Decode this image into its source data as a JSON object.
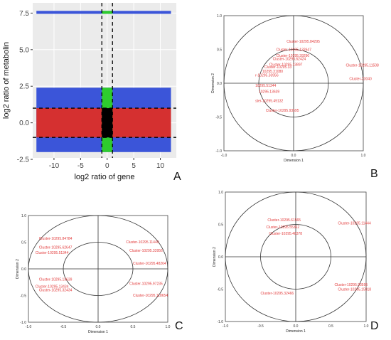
{
  "panels": {
    "A": {
      "letter": "A"
    },
    "B": {
      "letter": "B"
    },
    "C": {
      "letter": "C"
    },
    "D": {
      "letter": "D"
    }
  },
  "chart_data": [
    {
      "id": "A",
      "type": "scatter",
      "xlabel": "log2 ratio of gene",
      "ylabel": "log2 ratio of metabolin",
      "xlim": [
        -14,
        13
      ],
      "ylim": [
        -2.4,
        8.2
      ],
      "xticks": [
        -10,
        -5,
        0,
        5,
        10
      ],
      "yticks": [
        -2.5,
        0.0,
        2.5,
        5.0,
        7.5
      ],
      "ytick_labels": [
        "-2.5",
        "0.0",
        "2.5",
        "5.0",
        "7.5"
      ],
      "grid": true,
      "background": "#ebebeb",
      "threshold_lines": {
        "x": [
          -1,
          1
        ],
        "y": [
          -1,
          1
        ]
      },
      "colors": {
        "outside": "#3b55d9",
        "y_within": "#d53030",
        "x_within": "#2ecc2e",
        "both_within": "#000000"
      },
      "regions": [
        {
          "name": "",
          "color": "#3b55d9",
          "x": [
            -13.3,
            12.0
          ],
          "y": [
            -2.0,
            2.4
          ]
        },
        {
          "name": "",
          "color": "#3b55d9",
          "x": [
            -13.3,
            12.0
          ],
          "y": [
            7.45,
            7.65
          ]
        },
        {
          "name": "",
          "color": "#d53030",
          "x": [
            -13.3,
            12.0
          ],
          "y": [
            -1.0,
            1.0
          ]
        },
        {
          "name": "",
          "color": "#2ecc2e",
          "x": [
            -1.0,
            1.0
          ],
          "y": [
            -2.0,
            2.4
          ]
        },
        {
          "name": "",
          "color": "#2ecc2e",
          "x": [
            -1.0,
            1.0
          ],
          "y": [
            7.45,
            7.65
          ]
        },
        {
          "name": "",
          "color": "#000000",
          "x": [
            -1.0,
            1.0
          ],
          "y": [
            -1.0,
            1.0
          ]
        }
      ]
    },
    {
      "id": "B",
      "type": "scatter",
      "xlabel": "Dimension 1",
      "ylabel": "Dimension 2",
      "xlim": [
        -1,
        1
      ],
      "ylim": [
        -1,
        1
      ],
      "xticks": [
        -1.0,
        0.0,
        1.0
      ],
      "yticks": [
        -1.0,
        -0.5,
        0.0,
        0.5,
        1.0
      ],
      "circles": [
        1.0,
        0.5
      ],
      "label_color": "#e23c3c",
      "labels": [
        {
          "text": "Cluster-10295.84295",
          "x": -0.1,
          "y": 0.6
        },
        {
          "text": "Cluster-10295.132647",
          "x": -0.25,
          "y": 0.48
        },
        {
          "text": "Cluster-10295.39290",
          "x": -0.25,
          "y": 0.39
        },
        {
          "text": "Cluster-10295.62424",
          "x": -0.3,
          "y": 0.34
        },
        {
          "text": "Cluster-10295.13897",
          "x": -0.35,
          "y": 0.26
        },
        {
          "text": "Cluster-10295.33",
          "x": -0.42,
          "y": 0.22
        },
        {
          "text": "10295.31080",
          "x": -0.45,
          "y": 0.16
        },
        {
          "text": "r-10295.33956",
          "x": -0.55,
          "y": 0.1
        },
        {
          "text": "10295.51344",
          "x": -0.55,
          "y": -0.05
        },
        {
          "text": "10295.13639",
          "x": -0.5,
          "y": -0.14
        },
        {
          "text": "ster-10295.49132",
          "x": -0.55,
          "y": -0.28
        },
        {
          "text": "Cluster-10295.93595",
          "x": -0.4,
          "y": -0.42
        },
        {
          "text": "Cluster-10295.11508",
          "x": 0.75,
          "y": 0.25
        },
        {
          "text": "Cluster-23040",
          "x": 0.8,
          "y": 0.05
        }
      ]
    },
    {
      "id": "C",
      "type": "scatter",
      "xlabel": "Dimension 1",
      "ylabel": "Dimension 2",
      "xlim": [
        -1,
        1
      ],
      "ylim": [
        -1,
        1
      ],
      "xticks": [
        -1.0,
        -0.5,
        0.0,
        0.5,
        1.0
      ],
      "yticks": [
        -1.0,
        -0.5,
        0.0,
        0.5,
        1.0
      ],
      "circles": [
        1.0,
        0.5
      ],
      "label_color": "#e23c3c",
      "labels": [
        {
          "text": "Cluster-10295.84784",
          "x": -0.85,
          "y": 0.55
        },
        {
          "text": "Cluster-10295.62647",
          "x": -0.85,
          "y": 0.38
        },
        {
          "text": "Cluster-10295.51344",
          "x": -0.9,
          "y": 0.28
        },
        {
          "text": "Cluster-10295.11440",
          "x": 0.4,
          "y": 0.48
        },
        {
          "text": "Cluster-10295.33956",
          "x": 0.45,
          "y": 0.32
        },
        {
          "text": "Cluster-10295.48264",
          "x": 0.5,
          "y": 0.08
        },
        {
          "text": "Cluster-10295.13639",
          "x": -0.85,
          "y": -0.22
        },
        {
          "text": "Cluster-10295.13434",
          "x": -0.9,
          "y": -0.35
        },
        {
          "text": "Cluster-10295.32434",
          "x": -0.85,
          "y": -0.42
        },
        {
          "text": "Cluster-10295.97235",
          "x": 0.45,
          "y": -0.3
        },
        {
          "text": "Cluster-10295.118654",
          "x": 0.5,
          "y": -0.52
        }
      ]
    },
    {
      "id": "D",
      "type": "scatter",
      "xlabel": "Dimension 1",
      "ylabel": "Dimension 2",
      "xlim": [
        -1,
        1
      ],
      "ylim": [
        -1,
        1
      ],
      "xticks": [
        -1.0,
        -0.5,
        0.0,
        0.5,
        1.0
      ],
      "yticks": [
        -1.0,
        -0.5,
        0.0,
        0.5,
        1.0
      ],
      "circles": [
        1.0,
        0.5
      ],
      "label_color": "#e23c3c",
      "labels": [
        {
          "text": "Cluster-10295.61565",
          "x": -0.4,
          "y": 0.55
        },
        {
          "text": "Cluster-10295.55362",
          "x": -0.42,
          "y": 0.44
        },
        {
          "text": "Cluster-10295.48378",
          "x": -0.38,
          "y": 0.34
        },
        {
          "text": "Cluster-10295.32466",
          "x": -0.5,
          "y": -0.58
        },
        {
          "text": "Cluster-10295.93595",
          "x": 0.55,
          "y": -0.45
        },
        {
          "text": "Cluster-10295.15918",
          "x": 0.6,
          "y": -0.52
        },
        {
          "text": "Cluster-10295.11444",
          "x": 0.6,
          "y": 0.5
        }
      ]
    }
  ]
}
